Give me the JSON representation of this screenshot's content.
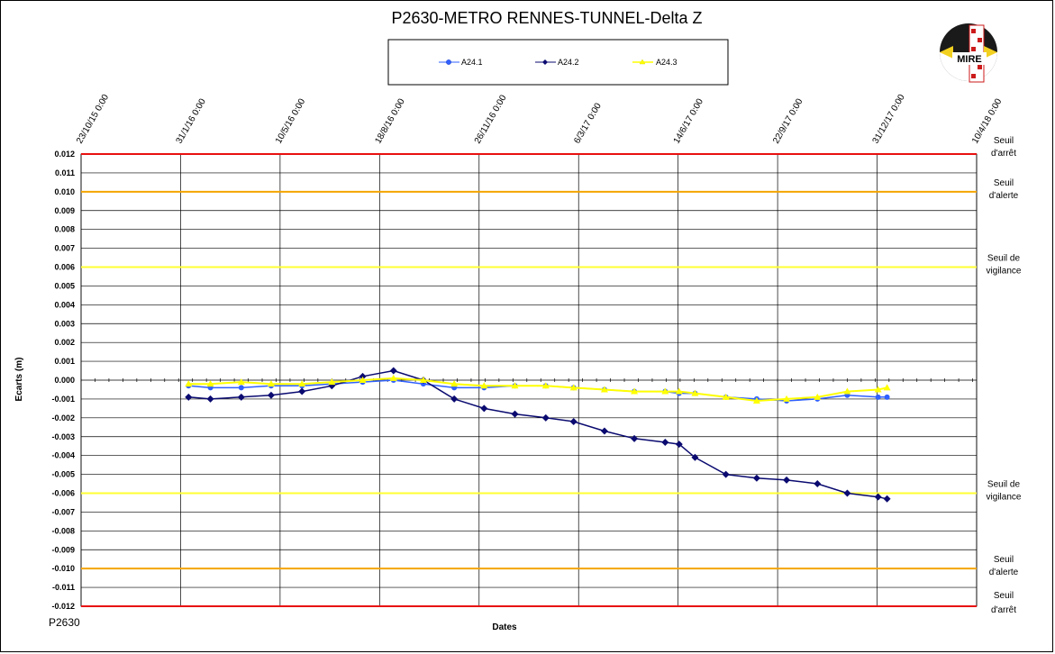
{
  "chart_data": {
    "type": "line",
    "title": "P2630-METRO  RENNES-TUNNEL-Delta  Z",
    "xlabel": "Dates",
    "ylabel": "Ecarts (m)",
    "footer_label": "P2630",
    "logo_text": "MIRE",
    "ylim": [
      -0.012,
      0.012
    ],
    "ytick_step": 0.001,
    "y_ticks": [
      "0.012",
      "0.011",
      "0.010",
      "0.009",
      "0.008",
      "0.007",
      "0.006",
      "0.005",
      "0.004",
      "0.003",
      "0.002",
      "0.001",
      "0.000",
      "-0.001",
      "-0.002",
      "-0.003",
      "-0.004",
      "-0.005",
      "-0.006",
      "-0.007",
      "-0.008",
      "-0.009",
      "-0.010",
      "-0.011",
      "-0.012"
    ],
    "x_ticks": [
      "23/10/15 0:00",
      "31/1/16 0:00",
      "10/5/16 0:00",
      "18/8/16 0:00",
      "26/11/16 0:00",
      "6/3/17 0:00",
      "14/6/17 0:00",
      "22/9/17 0:00",
      "31/12/17 0:00",
      "10/4/18 0:00"
    ],
    "xlim": [
      "23/10/15",
      "10/4/18"
    ],
    "grid": true,
    "legend_position": "top-center",
    "thresholds": [
      {
        "label_line1": "Seuil",
        "label_line2": "d'arrêt",
        "value": 0.012,
        "color": "#e81010"
      },
      {
        "label_line1": "Seuil",
        "label_line2": "d'alerte",
        "value": 0.01,
        "color": "#f5a500"
      },
      {
        "label_line1": "Seuil de",
        "label_line2": "vigilance",
        "value": 0.006,
        "color": "#ffff33"
      },
      {
        "label_line1": "Seuil de",
        "label_line2": "vigilance",
        "value": -0.006,
        "color": "#ffff33"
      },
      {
        "label_line1": "Seuil",
        "label_line2": "d'alerte",
        "value": -0.01,
        "color": "#f5a500"
      },
      {
        "label_line1": "Seuil",
        "label_line2": "d'arrêt",
        "value": -0.012,
        "color": "#e81010"
      }
    ],
    "series": [
      {
        "name": "A24.1",
        "color": "#3060ff",
        "marker": "circle",
        "x": [
          "8/2/16",
          "1/3/16",
          "1/4/16",
          "1/5/16",
          "1/6/16",
          "1/7/16",
          "1/8/16",
          "1/9/16",
          "1/10/16",
          "1/11/16",
          "1/12/16",
          "1/1/17",
          "1/2/17",
          "1/3/17",
          "1/4/17",
          "1/5/17",
          "1/6/17",
          "15/6/17",
          "1/7/17",
          "1/8/17",
          "1/9/17",
          "1/10/17",
          "1/11/17",
          "1/12/17",
          "1/1/18",
          "10/1/18"
        ],
        "y": [
          -0.0003,
          -0.0004,
          -0.0004,
          -0.0003,
          -0.0003,
          -0.0002,
          -0.0001,
          0.0,
          -0.0002,
          -0.0004,
          -0.0004,
          -0.0003,
          -0.0003,
          -0.0004,
          -0.0005,
          -0.0006,
          -0.0006,
          -0.0007,
          -0.0007,
          -0.0009,
          -0.001,
          -0.0011,
          -0.001,
          -0.0008,
          -0.0009,
          -0.0009
        ]
      },
      {
        "name": "A24.2",
        "color": "#0a0a70",
        "marker": "diamond",
        "x": [
          "8/2/16",
          "1/3/16",
          "1/4/16",
          "1/5/16",
          "1/6/16",
          "1/7/16",
          "1/8/16",
          "1/9/16",
          "1/10/16",
          "1/11/16",
          "1/12/16",
          "1/1/17",
          "1/2/17",
          "1/3/17",
          "1/4/17",
          "1/5/17",
          "1/6/17",
          "15/6/17",
          "1/7/17",
          "1/8/17",
          "1/9/17",
          "1/10/17",
          "1/11/17",
          "1/12/17",
          "1/1/18",
          "10/1/18"
        ],
        "y": [
          -0.0009,
          -0.001,
          -0.0009,
          -0.0008,
          -0.0006,
          -0.0003,
          0.0002,
          0.0005,
          0.0,
          -0.001,
          -0.0015,
          -0.0018,
          -0.002,
          -0.0022,
          -0.0027,
          -0.0031,
          -0.0033,
          -0.0034,
          -0.0041,
          -0.005,
          -0.0052,
          -0.0053,
          -0.0055,
          -0.006,
          -0.0062,
          -0.0063
        ]
      },
      {
        "name": "A24.3",
        "color": "#ffff00",
        "marker": "triangle",
        "x": [
          "8/2/16",
          "1/3/16",
          "1/4/16",
          "1/5/16",
          "1/6/16",
          "1/7/16",
          "1/8/16",
          "1/9/16",
          "1/10/16",
          "1/11/16",
          "1/12/16",
          "1/1/17",
          "1/2/17",
          "1/3/17",
          "1/4/17",
          "1/5/17",
          "1/6/17",
          "15/6/17",
          "1/7/17",
          "1/8/17",
          "1/9/17",
          "1/10/17",
          "1/11/17",
          "1/12/17",
          "1/1/18",
          "10/1/18"
        ],
        "y": [
          -0.0002,
          -0.0002,
          -0.0001,
          -0.0002,
          -0.0002,
          -0.0001,
          0.0,
          0.0001,
          0.0,
          -0.0002,
          -0.0003,
          -0.0003,
          -0.0003,
          -0.0004,
          -0.0005,
          -0.0006,
          -0.0006,
          -0.0006,
          -0.0007,
          -0.0009,
          -0.0011,
          -0.001,
          -0.0009,
          -0.0006,
          -0.0005,
          -0.0004
        ]
      }
    ]
  }
}
